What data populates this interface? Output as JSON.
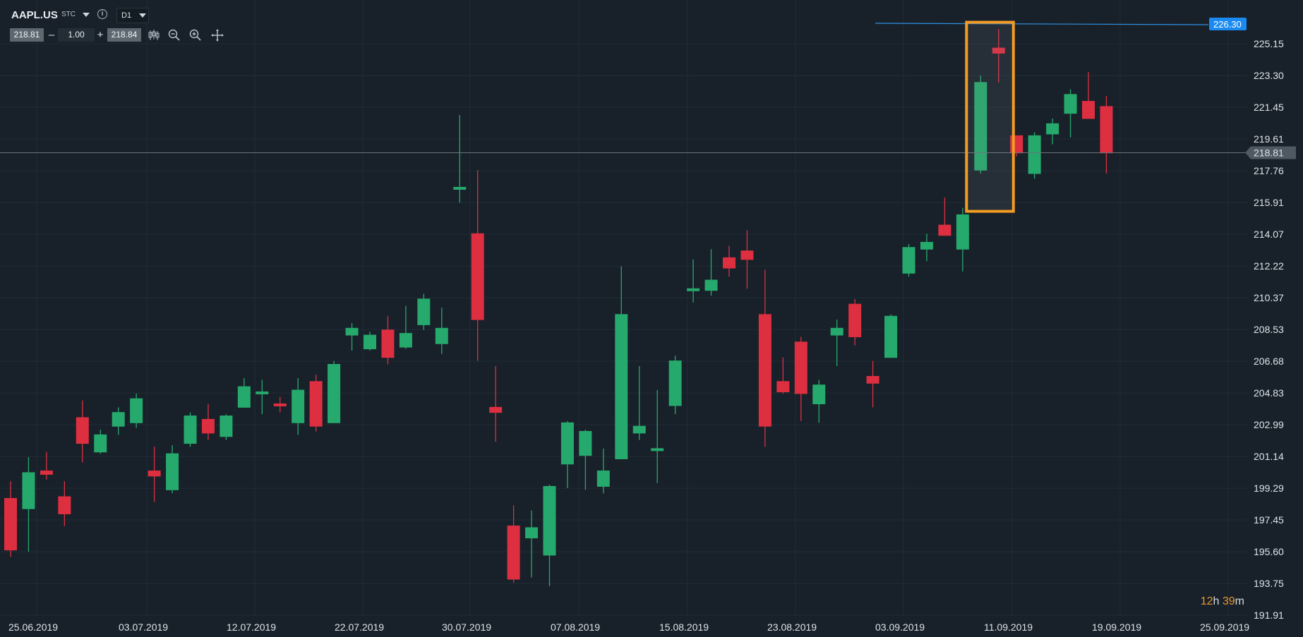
{
  "toolbar": {
    "symbol": "AAPL.US",
    "asset_class": "STC",
    "timeframe": "D1",
    "bid": "218.81",
    "minus": "–",
    "volume": "1.00",
    "plus": "+",
    "ask": "218.84",
    "icons": [
      "candles-icon",
      "zoom-out-icon",
      "zoom-in-icon",
      "crosshair-icon"
    ]
  },
  "timer": {
    "hours": "12",
    "h_unit": "h",
    "minutes": "39",
    "m_unit": "m"
  },
  "colors": {
    "background": "#18212a",
    "grid": "#212c35",
    "bull": "#26a96c",
    "bear": "#dd2f40",
    "price_line": "#6a737a",
    "alert_line": "#2f8fe0",
    "alert_label": "#1a8af0",
    "highlight": "#f39b23",
    "timer": "#e9962b"
  },
  "chart_data": {
    "type": "candlestick",
    "symbol": "AAPL.US",
    "timeframe": "D1",
    "ylim": [
      191.0,
      227.5
    ],
    "y_ticks": [
      "225.15",
      "223.30",
      "221.45",
      "219.61",
      "217.76",
      "215.91",
      "214.07",
      "212.22",
      "210.37",
      "208.53",
      "206.68",
      "204.83",
      "202.99",
      "201.14",
      "199.29",
      "197.45",
      "195.60",
      "193.75",
      "191.91"
    ],
    "x_ticks": [
      "25.06.2019",
      "03.07.2019",
      "12.07.2019",
      "22.07.2019",
      "30.07.2019",
      "07.08.2019",
      "15.08.2019",
      "23.08.2019",
      "03.09.2019",
      "11.09.2019",
      "19.09.2019",
      "25.09.2019"
    ],
    "current_price": 218.81,
    "current_price_label": "218.81",
    "alert_level": 226.3,
    "alert_label": "226.30",
    "candles": [
      {
        "open": 198.7,
        "high": 199.7,
        "low": 195.3,
        "close": 195.7
      },
      {
        "open": 198.1,
        "high": 201.1,
        "low": 195.6,
        "close": 200.2
      },
      {
        "open": 200.3,
        "high": 201.4,
        "low": 199.8,
        "close": 200.1
      },
      {
        "open": 198.8,
        "high": 199.7,
        "low": 197.1,
        "close": 197.8
      },
      {
        "open": 203.4,
        "high": 204.4,
        "low": 200.8,
        "close": 201.9
      },
      {
        "open": 201.4,
        "high": 202.7,
        "low": 201.3,
        "close": 202.4
      },
      {
        "open": 202.9,
        "high": 204.0,
        "low": 202.4,
        "close": 203.7
      },
      {
        "open": 203.1,
        "high": 204.8,
        "low": 202.8,
        "close": 204.5
      },
      {
        "open": 200.3,
        "high": 201.7,
        "low": 198.5,
        "close": 200.0
      },
      {
        "open": 199.2,
        "high": 201.8,
        "low": 199.0,
        "close": 201.3
      },
      {
        "open": 201.9,
        "high": 203.7,
        "low": 201.7,
        "close": 203.5
      },
      {
        "open": 203.3,
        "high": 204.2,
        "low": 202.1,
        "close": 202.5
      },
      {
        "open": 202.3,
        "high": 203.6,
        "low": 202.1,
        "close": 203.5
      },
      {
        "open": 204.0,
        "high": 205.7,
        "low": 204.0,
        "close": 205.2
      },
      {
        "open": 204.8,
        "high": 205.6,
        "low": 203.6,
        "close": 204.9
      },
      {
        "open": 204.2,
        "high": 204.6,
        "low": 203.7,
        "close": 204.1
      },
      {
        "open": 203.1,
        "high": 205.7,
        "low": 202.4,
        "close": 205.0
      },
      {
        "open": 205.5,
        "high": 205.9,
        "low": 202.6,
        "close": 202.9
      },
      {
        "open": 203.1,
        "high": 206.7,
        "low": 203.1,
        "close": 206.5
      },
      {
        "open": 208.2,
        "high": 208.9,
        "low": 207.3,
        "close": 208.6
      },
      {
        "open": 207.4,
        "high": 208.4,
        "low": 207.3,
        "close": 208.2
      },
      {
        "open": 208.5,
        "high": 209.3,
        "low": 206.5,
        "close": 206.9
      },
      {
        "open": 207.5,
        "high": 209.9,
        "low": 207.4,
        "close": 208.3
      },
      {
        "open": 208.8,
        "high": 210.6,
        "low": 208.5,
        "close": 210.3
      },
      {
        "open": 207.7,
        "high": 209.8,
        "low": 207.1,
        "close": 208.6
      },
      {
        "open": 216.8,
        "high": 221.0,
        "low": 215.9,
        "close": 216.8
      },
      {
        "open": 214.1,
        "high": 217.8,
        "low": 206.7,
        "close": 209.1
      },
      {
        "open": 204.0,
        "high": 206.4,
        "low": 202.0,
        "close": 203.7
      },
      {
        "open": 197.1,
        "high": 198.3,
        "low": 193.8,
        "close": 194.0
      },
      {
        "open": 196.4,
        "high": 198.0,
        "low": 194.1,
        "close": 197.0
      },
      {
        "open": 195.4,
        "high": 199.5,
        "low": 193.6,
        "close": 199.4
      },
      {
        "open": 200.7,
        "high": 203.2,
        "low": 199.3,
        "close": 203.1
      },
      {
        "open": 201.2,
        "high": 202.7,
        "low": 199.2,
        "close": 202.6
      },
      {
        "open": 199.4,
        "high": 201.6,
        "low": 199.0,
        "close": 200.3
      },
      {
        "open": 201.0,
        "high": 212.2,
        "low": 201.0,
        "close": 209.4
      },
      {
        "open": 202.5,
        "high": 206.4,
        "low": 202.1,
        "close": 202.9
      },
      {
        "open": 201.5,
        "high": 205.0,
        "low": 199.6,
        "close": 201.6
      },
      {
        "open": 204.1,
        "high": 207.0,
        "low": 203.6,
        "close": 206.7
      },
      {
        "open": 210.8,
        "high": 212.6,
        "low": 210.1,
        "close": 210.9
      },
      {
        "open": 210.8,
        "high": 213.2,
        "low": 210.5,
        "close": 211.4
      },
      {
        "open": 212.7,
        "high": 213.4,
        "low": 211.6,
        "close": 212.1
      },
      {
        "open": 213.1,
        "high": 214.3,
        "low": 210.9,
        "close": 212.6
      },
      {
        "open": 209.4,
        "high": 212.0,
        "low": 201.7,
        "close": 202.9
      },
      {
        "open": 205.5,
        "high": 206.9,
        "low": 204.8,
        "close": 204.9
      },
      {
        "open": 207.8,
        "high": 208.1,
        "low": 203.2,
        "close": 204.8
      },
      {
        "open": 204.2,
        "high": 205.6,
        "low": 203.1,
        "close": 205.3
      },
      {
        "open": 208.2,
        "high": 209.1,
        "low": 206.4,
        "close": 208.6
      },
      {
        "open": 210.0,
        "high": 210.3,
        "low": 207.6,
        "close": 208.1
      },
      {
        "open": 205.8,
        "high": 206.7,
        "low": 204.0,
        "close": 205.4
      },
      {
        "open": 206.9,
        "high": 209.4,
        "low": 206.9,
        "close": 209.3
      },
      {
        "open": 211.8,
        "high": 213.5,
        "low": 211.6,
        "close": 213.3
      },
      {
        "open": 213.2,
        "high": 214.1,
        "low": 212.5,
        "close": 213.6
      },
      {
        "open": 214.6,
        "high": 216.2,
        "low": 214.0,
        "close": 214.0
      },
      {
        "open": 213.2,
        "high": 215.6,
        "low": 211.9,
        "close": 215.2
      },
      {
        "open": 217.8,
        "high": 223.3,
        "low": 217.6,
        "close": 222.9
      },
      {
        "open": 224.9,
        "high": 226.0,
        "low": 222.9,
        "close": 224.6
      },
      {
        "open": 219.8,
        "high": 219.8,
        "low": 218.6,
        "close": 218.8
      },
      {
        "open": 217.6,
        "high": 220.0,
        "low": 217.3,
        "close": 219.8
      },
      {
        "open": 219.9,
        "high": 220.8,
        "low": 219.3,
        "close": 220.5
      },
      {
        "open": 221.1,
        "high": 222.5,
        "low": 219.7,
        "close": 222.2
      },
      {
        "open": 221.8,
        "high": 223.5,
        "low": 220.9,
        "close": 220.8
      },
      {
        "open": 221.5,
        "high": 222.1,
        "low": 217.6,
        "close": 218.8
      }
    ]
  }
}
